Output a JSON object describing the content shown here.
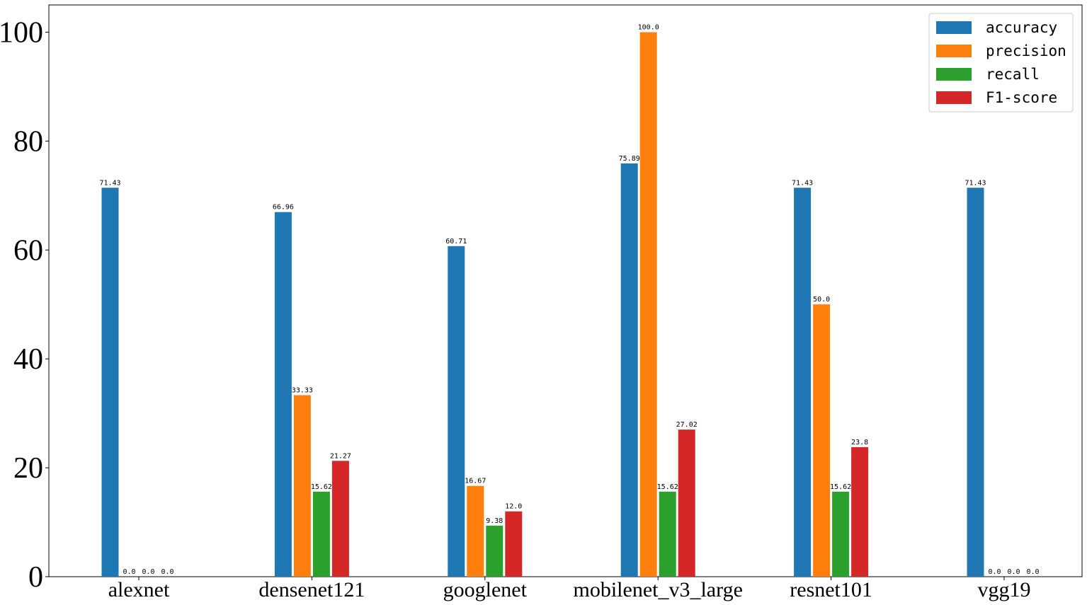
{
  "chart_data": {
    "type": "bar",
    "categories": [
      "alexnet",
      "densenet121",
      "googlenet",
      "mobilenet_v3_large",
      "resnet101",
      "vgg19"
    ],
    "series": [
      {
        "name": "accuracy",
        "color": "#1f77b4",
        "values": [
          71.43,
          66.96,
          60.71,
          75.89,
          71.43,
          71.43
        ]
      },
      {
        "name": "precision",
        "color": "#ff7f0e",
        "values": [
          0.0,
          33.33,
          16.67,
          100.0,
          50.0,
          0.0
        ]
      },
      {
        "name": "recall",
        "color": "#2ca02c",
        "values": [
          0.0,
          15.62,
          9.38,
          15.62,
          15.62,
          0.0
        ]
      },
      {
        "name": "F1-score",
        "color": "#d62728",
        "values": [
          0.0,
          21.27,
          12.0,
          27.02,
          23.8,
          0.0
        ]
      }
    ],
    "value_labels": [
      [
        "71.43",
        "66.96",
        "60.71",
        "75.89",
        "71.43",
        "71.43"
      ],
      [
        "0.0",
        "33.33",
        "16.67",
        "100.0",
        "50.0",
        "0.0"
      ],
      [
        "0.0",
        "15.62",
        "9.38",
        "15.62",
        "15.62",
        "0.0"
      ],
      [
        "0.0",
        "21.27",
        "12.0",
        "27.02",
        "23.8",
        "0.0"
      ]
    ],
    "yticks": [
      "0",
      "20",
      "40",
      "60",
      "80",
      "100"
    ],
    "ylim": [
      0,
      105
    ],
    "legend_position": "top-right",
    "grid": false,
    "title": "",
    "xlabel": "",
    "ylabel": ""
  }
}
